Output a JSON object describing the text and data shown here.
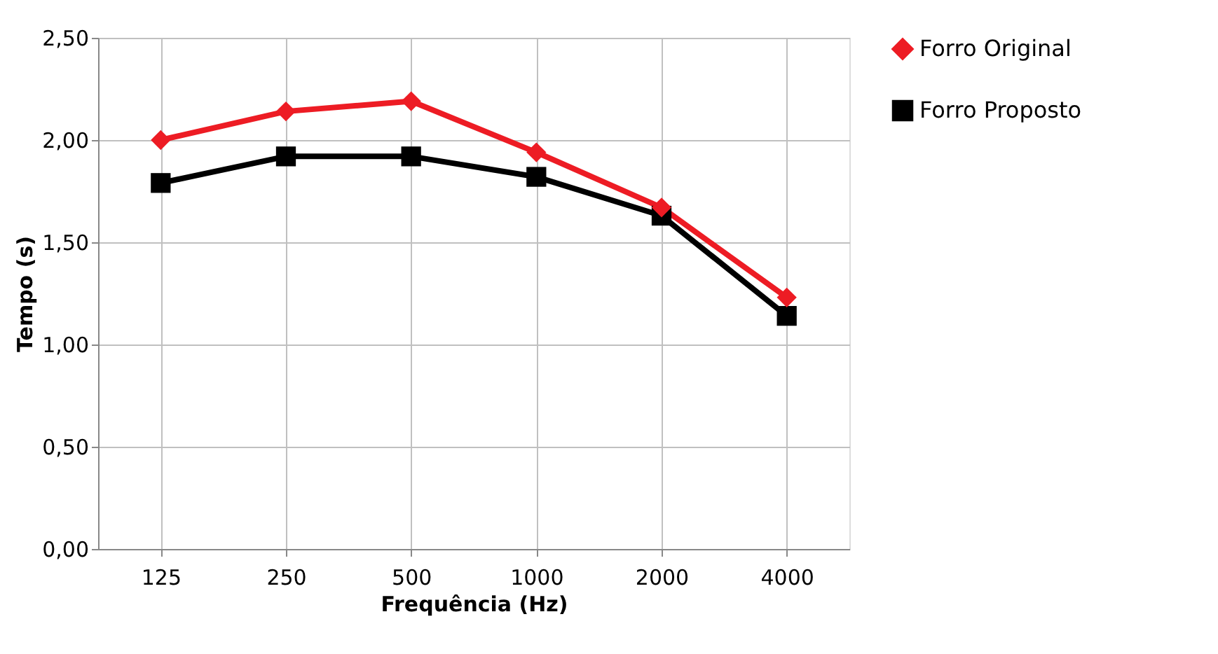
{
  "chart_data": {
    "type": "line",
    "xlabel": "Frequência (Hz)",
    "ylabel": "Tempo (s)",
    "categories": [
      "125",
      "250",
      "500",
      "1000",
      "2000",
      "4000"
    ],
    "series": [
      {
        "name": "Forro Original",
        "color": "#ed1c24",
        "marker": "diamond",
        "values": [
          2.0,
          2.14,
          2.19,
          1.94,
          1.67,
          1.23
        ]
      },
      {
        "name": "Forro Proposto",
        "color": "#000000",
        "marker": "square",
        "values": [
          1.79,
          1.92,
          1.92,
          1.82,
          1.63,
          1.14
        ]
      }
    ],
    "ylim": [
      0,
      2.5
    ],
    "yticks": [
      {
        "value": 0,
        "label": "0,00"
      },
      {
        "value": 0.5,
        "label": "0,50"
      },
      {
        "value": 1,
        "label": "1,00"
      },
      {
        "value": 1.5,
        "label": "1,50"
      },
      {
        "value": 2,
        "label": "2,00"
      },
      {
        "value": 2.5,
        "label": "2,50"
      }
    ],
    "grid": true,
    "legend": "right",
    "line_style": "solid"
  }
}
